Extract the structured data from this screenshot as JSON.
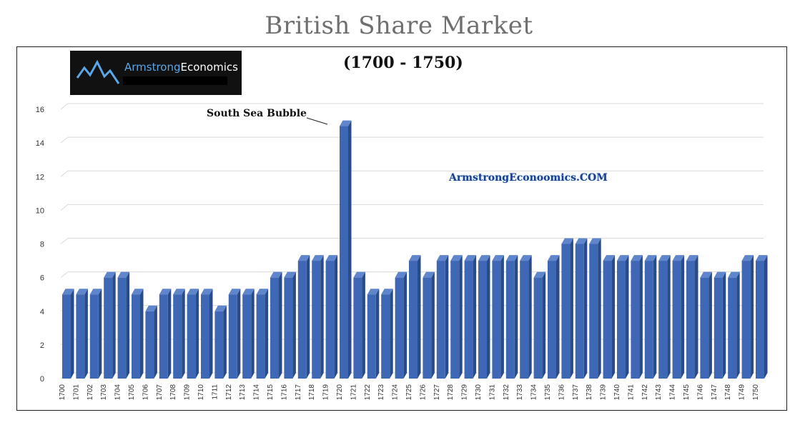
{
  "header": {
    "title": "British Share Market",
    "subtitle": "(1700 - 1750)",
    "logo_brand": "Armstrong",
    "logo_suffix": "Economics",
    "watermark": "ArmstrongEconoomics.COM",
    "annotation": "South Sea Bubble"
  },
  "colors": {
    "bar_front": "#3e68b5",
    "bar_side": "#2a4b86",
    "bar_top": "#5f86cc",
    "grid": "#d9d9d9",
    "logo_accent": "#5aa6e6"
  },
  "chart_data": {
    "type": "bar",
    "style": "3d-column",
    "title": "British Share Market",
    "subtitle": "(1700 - 1750)",
    "xlabel": "",
    "ylabel": "",
    "ylim": [
      0,
      16
    ],
    "yticks": [
      "0",
      "2",
      "4",
      "6",
      "8",
      "10",
      "12",
      "14",
      "16"
    ],
    "grid": true,
    "legend": "none",
    "categories": [
      "1700",
      "1701",
      "1702",
      "1703",
      "1704",
      "1705",
      "1706",
      "1707",
      "1708",
      "1709",
      "1710",
      "1711",
      "1712",
      "1713",
      "1714",
      "1715",
      "1716",
      "1717",
      "1718",
      "1719",
      "1720",
      "1721",
      "1722",
      "1723",
      "1724",
      "1725",
      "1726",
      "1727",
      "1728",
      "1729",
      "1730",
      "1731",
      "1732",
      "1733",
      "1734",
      "1735",
      "1736",
      "1737",
      "1738",
      "1739",
      "1740",
      "1741",
      "1742",
      "1743",
      "1744",
      "1745",
      "1746",
      "1747",
      "1748",
      "1749",
      "1750"
    ],
    "values": [
      5,
      5,
      5,
      6,
      6,
      5,
      4,
      5,
      5,
      5,
      5,
      4,
      5,
      5,
      5,
      6,
      6,
      7,
      7,
      7,
      15,
      6,
      5,
      5,
      6,
      7,
      6,
      7,
      7,
      7,
      7,
      7,
      7,
      7,
      6,
      7,
      8,
      8,
      8,
      7,
      7,
      7,
      7,
      7,
      7,
      7,
      6,
      6,
      6,
      7,
      7
    ],
    "annotations": [
      {
        "category": "1720",
        "text": "South Sea Bubble"
      }
    ]
  }
}
